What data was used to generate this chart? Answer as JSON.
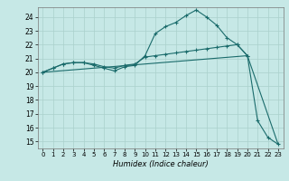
{
  "xlabel": "Humidex (Indice chaleur)",
  "ylabel": "",
  "bg_color": "#c6e8e6",
  "grid_color": "#aad0cc",
  "line_color": "#1a6b6b",
  "xlim": [
    -0.5,
    23.5
  ],
  "ylim": [
    14.5,
    24.7
  ],
  "yticks": [
    15,
    16,
    17,
    18,
    19,
    20,
    21,
    22,
    23,
    24
  ],
  "xticks": [
    0,
    1,
    2,
    3,
    4,
    5,
    6,
    7,
    8,
    9,
    10,
    11,
    12,
    13,
    14,
    15,
    16,
    17,
    18,
    19,
    20,
    21,
    22,
    23
  ],
  "line1_x": [
    0,
    1,
    2,
    3,
    4,
    5,
    6,
    7,
    8,
    9,
    10,
    11,
    12,
    13,
    14,
    15,
    16,
    17,
    18,
    19,
    20
  ],
  "line1_y": [
    20.0,
    20.3,
    20.6,
    20.7,
    20.7,
    20.6,
    20.4,
    20.3,
    20.5,
    20.6,
    21.1,
    21.2,
    21.3,
    21.4,
    21.5,
    21.6,
    21.7,
    21.8,
    21.9,
    22.0,
    21.2
  ],
  "line2_x": [
    0,
    1,
    2,
    3,
    4,
    5,
    6,
    7,
    8,
    9,
    10,
    11,
    12,
    13,
    14,
    15,
    16,
    17,
    18,
    19,
    20,
    21,
    22,
    23
  ],
  "line2_y": [
    20.0,
    20.3,
    20.6,
    20.7,
    20.7,
    20.5,
    20.3,
    20.1,
    20.4,
    20.5,
    21.2,
    22.8,
    23.3,
    23.6,
    24.1,
    24.5,
    24.0,
    23.4,
    22.5,
    22.0,
    21.2,
    16.5,
    15.3,
    14.8
  ],
  "line3_x": [
    0,
    20,
    23
  ],
  "line3_y": [
    20.0,
    21.2,
    14.8
  ]
}
